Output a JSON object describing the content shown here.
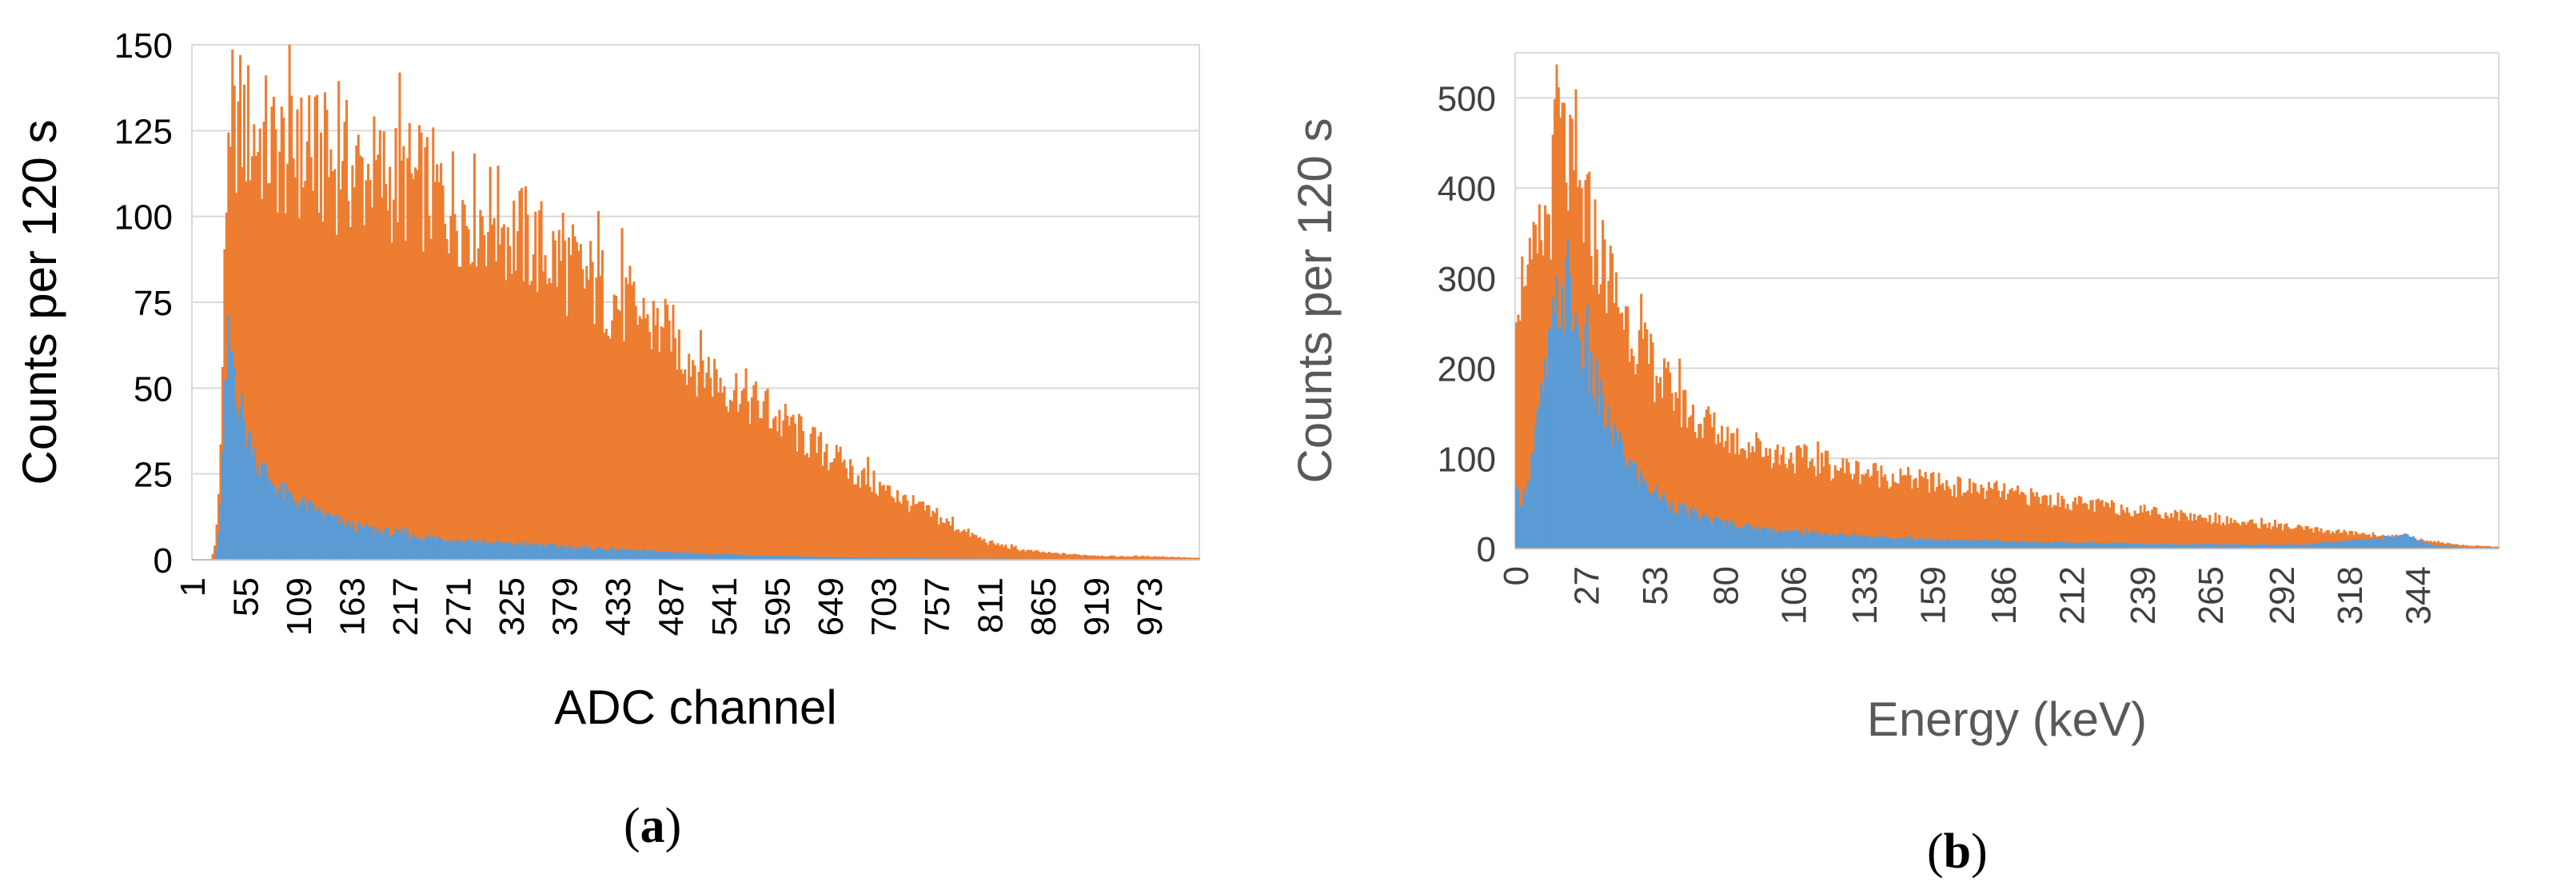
{
  "panels": [
    {
      "caption_letter": "a",
      "chart_data": {
        "type": "bar",
        "x_range": [
          1,
          1024
        ],
        "xticks": [
          "1",
          "55",
          "109",
          "163",
          "217",
          "271",
          "325",
          "379",
          "433",
          "487",
          "541",
          "595",
          "649",
          "703",
          "757",
          "811",
          "865",
          "919",
          "973"
        ],
        "xlabel": "ADC channel",
        "ylabel": "Counts per 120 s",
        "ylim": [
          0,
          150
        ],
        "yticks": [
          0,
          25,
          50,
          75,
          100,
          125,
          150
        ],
        "grid": "horizontal",
        "legend": "none",
        "series": [
          {
            "color": "#ED7D31",
            "envelope_channel": [
              1,
              20,
              25,
              30,
              33,
              36,
              40,
              46,
              60,
              80,
              100,
              150,
              180,
              220,
              260,
              300,
              340,
              380,
              420,
              460,
              500,
              540,
              580,
              620,
              660,
              700,
              740,
              780,
              810,
              840,
              870,
              900,
              940,
              980,
              1024
            ],
            "envelope_counts": [
              0,
              0,
              5,
              30,
              75,
              100,
              112,
              128,
              125,
              120,
              118,
              115,
              112,
              110,
              105,
              100,
              93,
              86,
              78,
              70,
              61,
              52,
              44,
              36,
              28,
              21,
              15,
              9,
              5,
              3,
              2,
              1.5,
              1,
              1,
              0.5
            ]
          },
          {
            "color": "#5B9BD5",
            "envelope_channel": [
              1,
              25,
              30,
              34,
              38,
              42,
              46,
              55,
              70,
              90,
              120,
              160,
              220,
              300,
              400,
              500,
              600,
              700,
              1024
            ],
            "envelope_counts": [
              0,
              0,
              15,
              45,
              62,
              60,
              52,
              38,
              27,
              20,
              15,
              10,
              7,
              5,
              3.5,
              2,
              1,
              0.5,
              0
            ]
          }
        ]
      }
    },
    {
      "caption_letter": "b",
      "chart_data": {
        "type": "bar",
        "x_range": [
          0,
          375
        ],
        "xticks": [
          "0",
          "27",
          "53",
          "80",
          "106",
          "133",
          "159",
          "186",
          "212",
          "239",
          "265",
          "292",
          "318",
          "344"
        ],
        "xlabel": "Energy (keV)",
        "ylabel": "Counts per 120 s",
        "ylim": [
          0,
          550
        ],
        "yticks": [
          0,
          100,
          200,
          300,
          400,
          500
        ],
        "grid": "horizontal",
        "legend": "none",
        "series": [
          {
            "color": "#ED7D31",
            "envelope_energy": [
              0,
              3,
              6,
              10,
              14,
              16,
              19,
              22,
              27,
              32,
              40,
              50,
              60,
              70,
              80,
              100,
              120,
              140,
              160,
              180,
              200,
              220,
              240,
              260,
              280,
              300,
              320,
              340,
              350,
              360,
              375
            ],
            "envelope_counts": [
              300,
              290,
              300,
              340,
              390,
              470,
              440,
              400,
              370,
              330,
              270,
              210,
              170,
              140,
              125,
              105,
              92,
              82,
              72,
              64,
              56,
              48,
              42,
              35,
              28,
              22,
              17,
              12,
              8,
              4,
              2
            ]
          },
          {
            "color": "#5B9BD5",
            "envelope_energy": [
              0,
              3,
              7,
              12,
              16,
              19,
              22,
              26,
              30,
              35,
              42,
              50,
              60,
              70,
              80,
              100,
              130,
              160,
              200,
              250,
              300,
              340,
              350,
              375
            ],
            "envelope_counts": [
              60,
              55,
              110,
              200,
              270,
              285,
              260,
              220,
              180,
              140,
              100,
              70,
              48,
              36,
              28,
              20,
              14,
              10,
              7,
              5,
              4,
              15,
              3,
              0
            ]
          }
        ]
      }
    }
  ]
}
